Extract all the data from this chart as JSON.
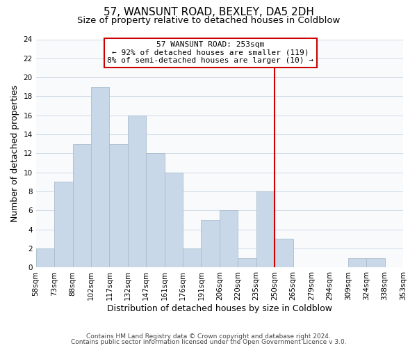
{
  "title": "57, WANSUNT ROAD, BEXLEY, DA5 2DH",
  "subtitle": "Size of property relative to detached houses in Coldblow",
  "xlabel": "Distribution of detached houses by size in Coldblow",
  "ylabel": "Number of detached properties",
  "footnote1": "Contains HM Land Registry data © Crown copyright and database right 2024.",
  "footnote2": "Contains public sector information licensed under the Open Government Licence v 3.0.",
  "bin_labels": [
    "58sqm",
    "73sqm",
    "88sqm",
    "102sqm",
    "117sqm",
    "132sqm",
    "147sqm",
    "161sqm",
    "176sqm",
    "191sqm",
    "206sqm",
    "220sqm",
    "235sqm",
    "250sqm",
    "265sqm",
    "279sqm",
    "294sqm",
    "309sqm",
    "324sqm",
    "338sqm",
    "353sqm"
  ],
  "bar_heights": [
    2,
    9,
    13,
    19,
    13,
    16,
    12,
    10,
    2,
    5,
    6,
    1,
    8,
    3,
    0,
    0,
    0,
    1,
    1,
    0
  ],
  "bar_color": "#c8d8e8",
  "bar_edge_color": "#aabccc",
  "grid_color": "#d0dce8",
  "vline_color": "#cc0000",
  "annotation_title": "57 WANSUNT ROAD: 253sqm",
  "annotation_line1": "← 92% of detached houses are smaller (119)",
  "annotation_line2": "8% of semi-detached houses are larger (10) →",
  "annotation_box_color": "#ffffff",
  "annotation_box_edge": "#cc0000",
  "ylim": [
    0,
    24
  ],
  "yticks": [
    0,
    2,
    4,
    6,
    8,
    10,
    12,
    14,
    16,
    18,
    20,
    22,
    24
  ],
  "title_fontsize": 11,
  "subtitle_fontsize": 9.5,
  "label_fontsize": 9,
  "tick_fontsize": 7.5,
  "annot_fontsize": 8,
  "footnote_fontsize": 6.5
}
